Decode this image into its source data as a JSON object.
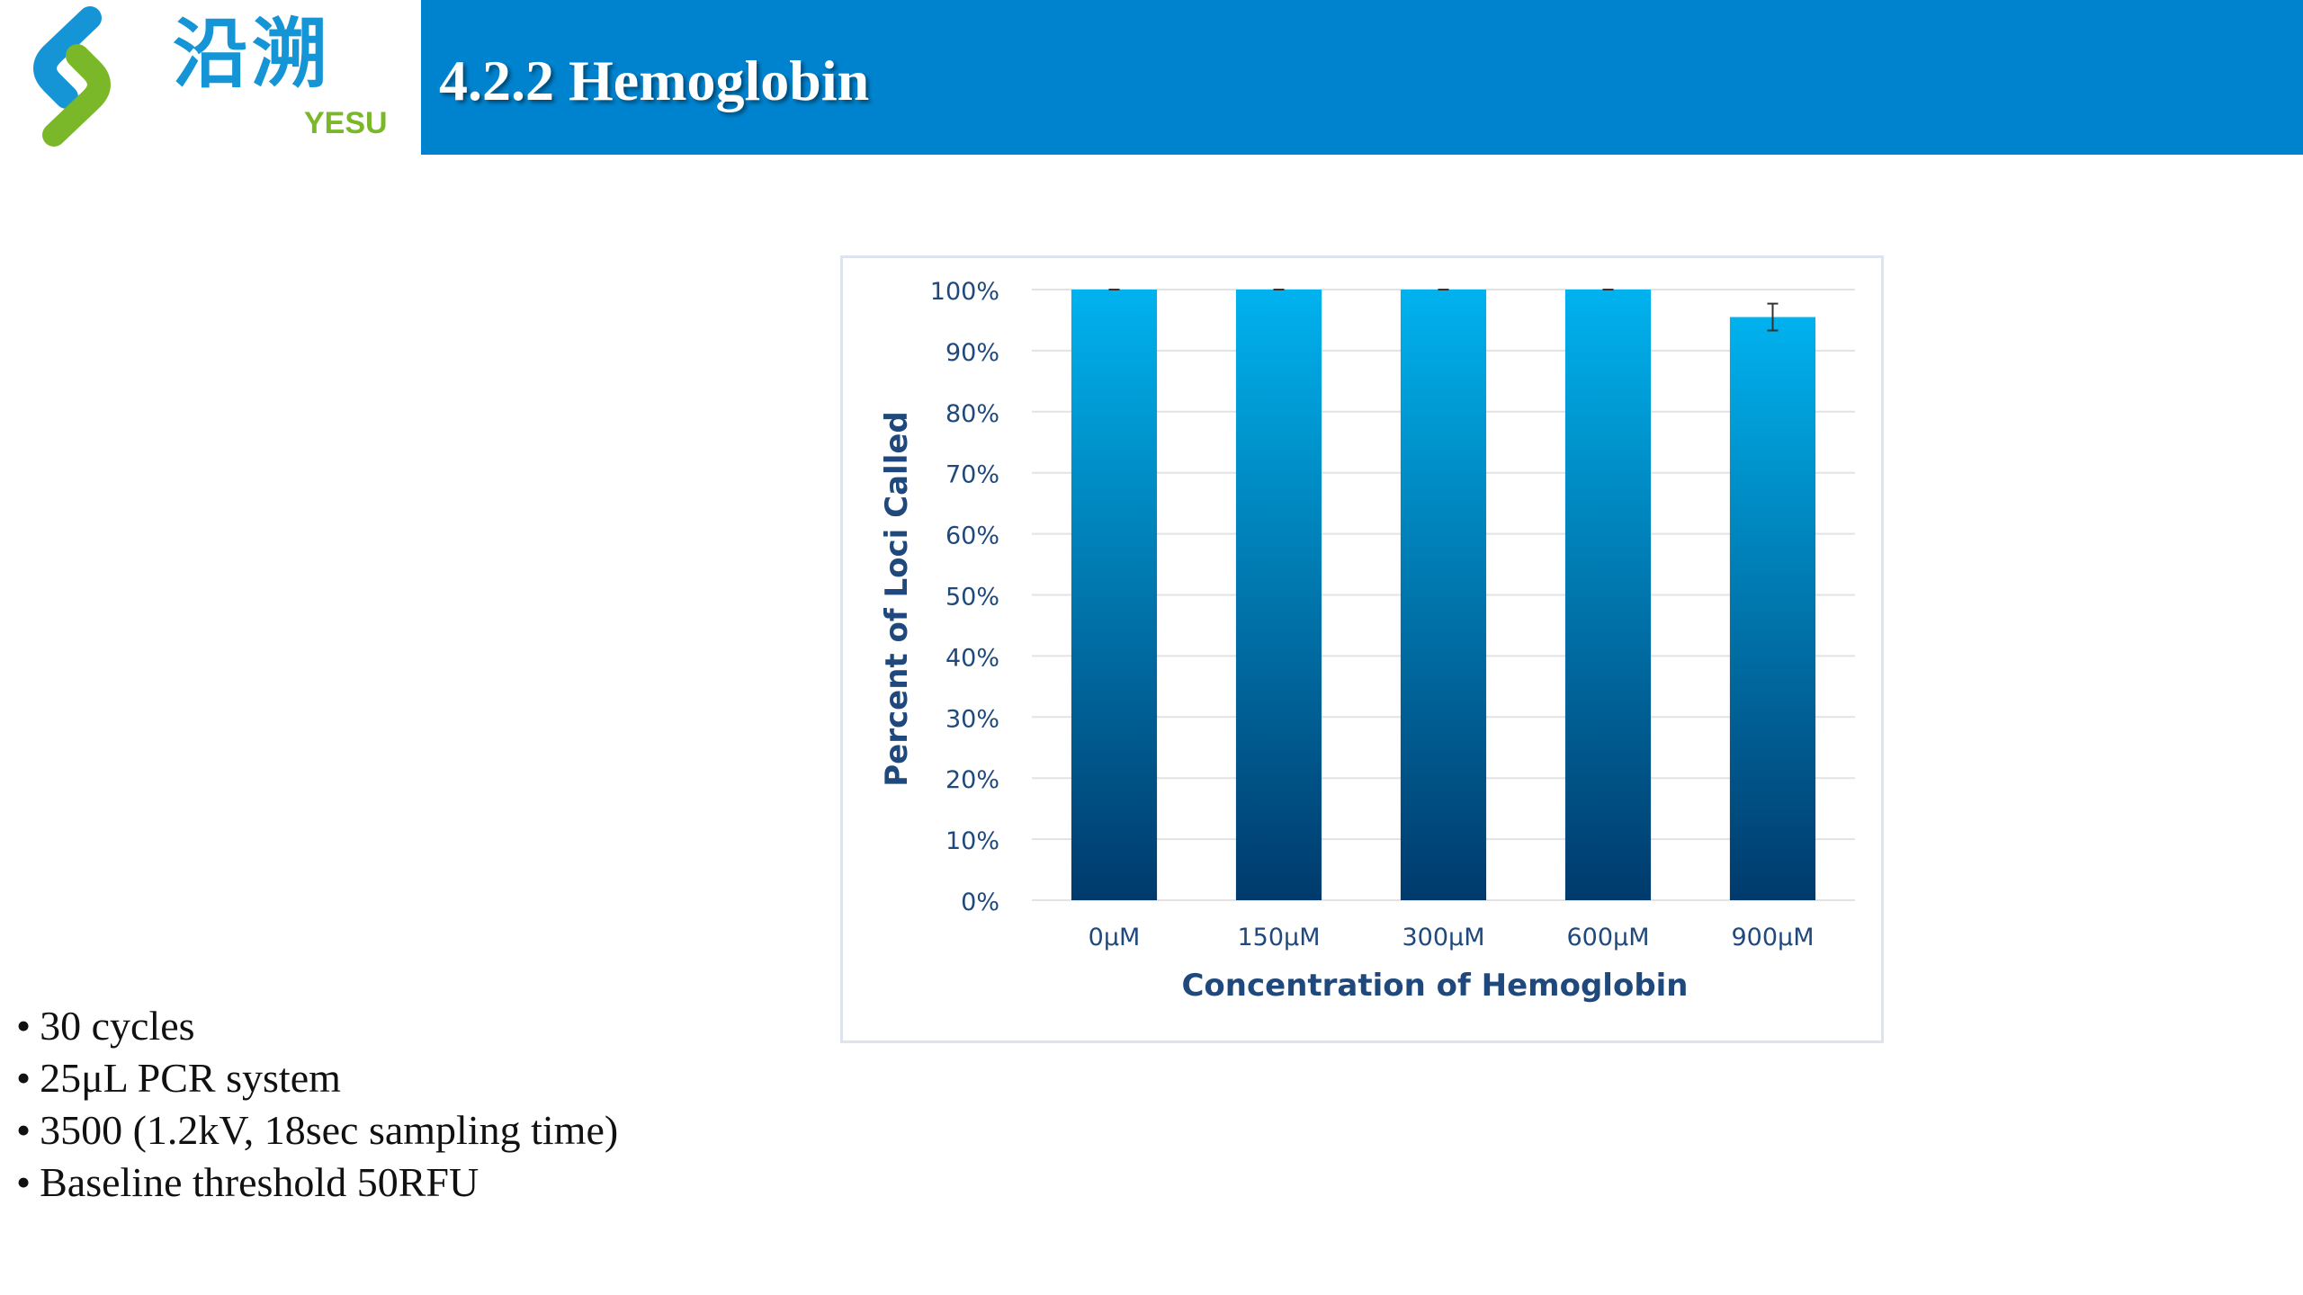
{
  "logo": {
    "name": "沿溯",
    "sub": "YESU",
    "icon": "yesu-logo-mark",
    "colors": {
      "blue": "#1594d6",
      "green": "#7ab829"
    }
  },
  "header": {
    "title": "4.2.2 Hemoglobin",
    "background": "#0083cf"
  },
  "chart_data": {
    "type": "bar",
    "title": "",
    "xlabel": "Concentration of Hemoglobin",
    "ylabel": "Percent of Loci Called",
    "categories": [
      "0μM",
      "150μM",
      "300μM",
      "600μM",
      "900μM"
    ],
    "values": [
      100,
      100,
      100,
      100,
      95.5
    ],
    "error": [
      0,
      0,
      0,
      0,
      2.2
    ],
    "ylim": [
      0,
      100
    ],
    "y_ticks": [
      0,
      10,
      20,
      30,
      40,
      50,
      60,
      70,
      80,
      90,
      100
    ],
    "y_tick_format": "percent",
    "grid": true,
    "legend": "none",
    "bar_gradient": {
      "top": "#00b2ee",
      "bottom": "#003a6c"
    },
    "label_color": "#1f497d"
  },
  "bullets": [
    "30 cycles",
    "25μL PCR system",
    "3500 (1.2kV, 18sec sampling time)",
    "Baseline threshold 50RFU"
  ]
}
